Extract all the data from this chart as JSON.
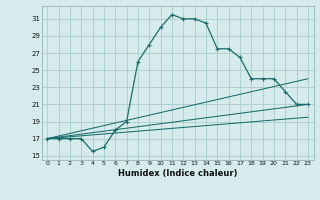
{
  "title": "",
  "xlabel": "Humidex (Indice chaleur)",
  "bg_color": "#d6ecec",
  "grid_color": "#aacccc",
  "line_color": "#1a6b6b",
  "xlim": [
    -0.5,
    23.5
  ],
  "ylim": [
    14.5,
    32.5
  ],
  "xticks": [
    0,
    1,
    2,
    3,
    4,
    5,
    6,
    7,
    8,
    9,
    10,
    11,
    12,
    13,
    14,
    15,
    16,
    17,
    18,
    19,
    20,
    21,
    22,
    23
  ],
  "yticks": [
    15,
    17,
    19,
    21,
    23,
    25,
    27,
    29,
    31
  ],
  "curve1_x": [
    0,
    1,
    2,
    3,
    4,
    5,
    6,
    7,
    8,
    9,
    10,
    11,
    12,
    13,
    14,
    15,
    16,
    17,
    18,
    19,
    20,
    21,
    22,
    23
  ],
  "curve1_y": [
    17,
    17,
    17,
    17,
    15.5,
    16,
    18,
    19,
    26,
    28,
    30,
    31.5,
    31,
    31,
    30.5,
    27.5,
    27.5,
    26.5,
    24,
    24,
    24,
    22.5,
    21,
    21
  ],
  "line1_x": [
    0,
    23
  ],
  "line1_y": [
    17,
    24.0
  ],
  "line2_x": [
    0,
    23
  ],
  "line2_y": [
    17,
    21.0
  ],
  "line3_x": [
    0,
    23
  ],
  "line3_y": [
    17,
    19.5
  ]
}
